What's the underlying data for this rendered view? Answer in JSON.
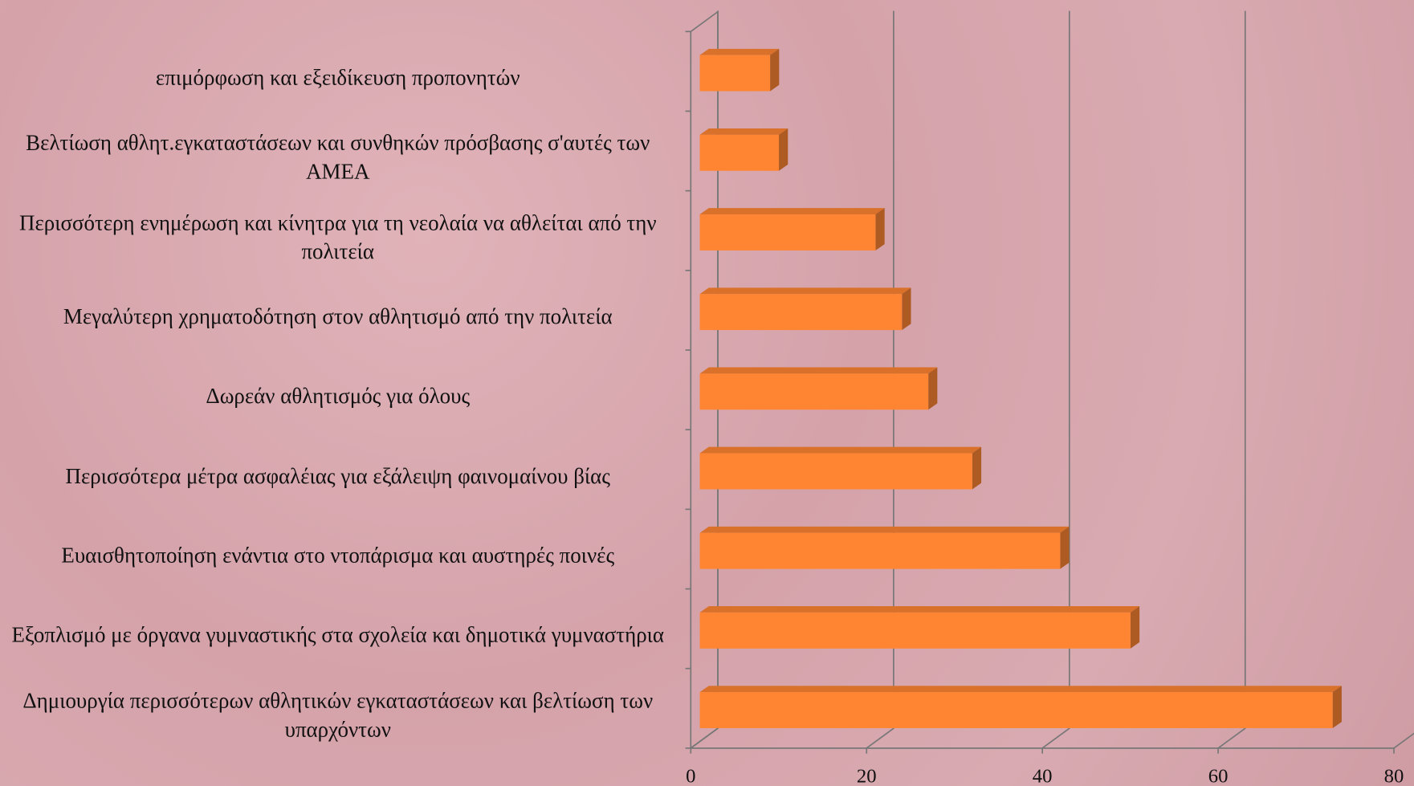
{
  "chart_data": {
    "type": "bar3d-horizontal",
    "categories": [
      "επιμόρφωση και εξειδίκευση προπονητών",
      "Βελτίωση αθλητ.εγκαταστάσεων και συνθηκών πρόσβασης σ'αυτές των ΑΜΕΑ",
      "Περισσότερη ενημέρωση και κίνητρα για τη νεολαία να αθλείται από την πολιτεία",
      "Μεγαλύτερη χρηματοδότηση στον αθλητισμό από την πολιτεία",
      "Δωρεάν αθλητισμός για όλους",
      "Περισσότερα μέτρα ασφαλέιας για εξάλειψη φαινομαίνου βίας",
      "Ευαισθητοποίηση ενάντια στο ντοπάρισμα και αυστηρές ποινές",
      "Εξοπλισμό με όργανα γυμναστικής στα σχολεία και δημοτικά γυμναστήρια",
      "Δημιουργία περισσότερων αθλητικών εγκαταστάσεων και βελτίωση των υπαρχόντων"
    ],
    "values": [
      8,
      9,
      20,
      23,
      26,
      31,
      41,
      49,
      72
    ],
    "color": "#ff8533",
    "xlim": [
      0,
      80
    ],
    "xticks": [
      0,
      20,
      40,
      60,
      80
    ],
    "grid": true
  }
}
